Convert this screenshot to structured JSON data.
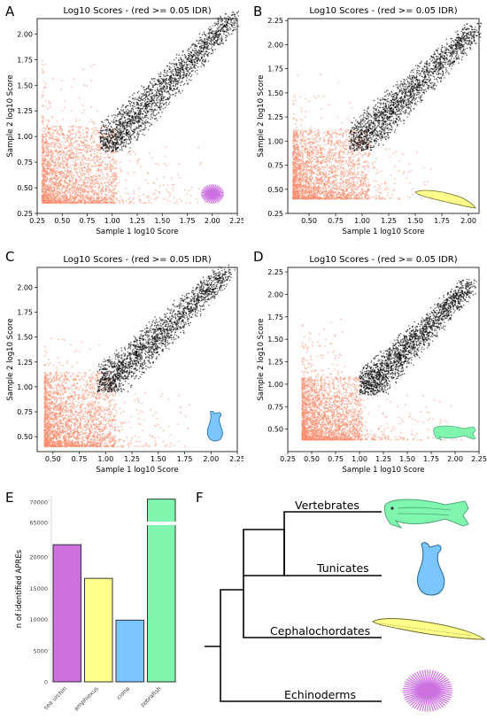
{
  "panel_labels": [
    "A",
    "B",
    "C",
    "D",
    "E",
    "F"
  ],
  "colors": {
    "pass": "#000000",
    "fail": "#fa8a6c",
    "sea_urchin": "#cc70e0",
    "amphioxus": "#ffff8a",
    "ciona": "#7cc6ff",
    "zebrafish": "#7ff5ae"
  },
  "chart_data": [
    {
      "type": "scatter",
      "panel": "A",
      "organism_icon": "sea-urchin-icon",
      "title": "Log10 Scores - (red >= 0.05 IDR)",
      "xlabel": "Sample 1 log10 Score",
      "ylabel": "Sample 2 log10 Score",
      "xlim": [
        0.25,
        2.25
      ],
      "ylim": [
        0.25,
        2.15
      ],
      "xticks": [
        "0.25",
        "0.50",
        "0.75",
        "1.00",
        "1.25",
        "1.50",
        "1.75",
        "2.00",
        "2.25"
      ],
      "yticks": [
        "0.25",
        "0.50",
        "0.75",
        "1.00",
        "1.25",
        "1.50",
        "1.75",
        "2.00"
      ],
      "xtick_values": [
        0.25,
        0.5,
        0.75,
        1.0,
        1.25,
        1.5,
        1.75,
        2.0,
        2.25
      ],
      "ytick_values": [
        0.25,
        0.5,
        0.75,
        1.0,
        1.25,
        1.5,
        1.75,
        2.0
      ],
      "series": [
        {
          "name": "red >= 0.05 IDR",
          "region": {
            "x": [
              0.3,
              2.05
            ],
            "y": [
              0.35,
              1.85
            ],
            "threshold": 0.9
          }
        },
        {
          "name": "",
          "region": {
            "x": [
              0.88,
              2.2
            ],
            "y": [
              0.85,
              2.15
            ],
            "threshold": 0.9
          }
        }
      ]
    },
    {
      "type": "scatter",
      "panel": "B",
      "organism_icon": "amphioxus-icon",
      "title": "Log10 Scores - (red >= 0.05 IDR)",
      "xlabel": "Sample 1 log10 Score",
      "ylabel": "Sample 2 log10 Score",
      "xlim": [
        0.3,
        2.1
      ],
      "ylim": [
        0.25,
        2.27
      ],
      "xticks": [
        "0.50",
        "0.75",
        "1.00",
        "1.25",
        "1.50",
        "1.75",
        "2.00"
      ],
      "yticks": [
        "0.25",
        "0.50",
        "0.75",
        "1.00",
        "1.25",
        "1.50",
        "1.75",
        "2.00",
        "2.25"
      ],
      "xtick_values": [
        0.5,
        0.75,
        1.0,
        1.25,
        1.5,
        1.75,
        2.0
      ],
      "ytick_values": [
        0.25,
        0.5,
        0.75,
        1.0,
        1.25,
        1.5,
        1.75,
        2.0,
        2.25
      ],
      "series": [
        {
          "name": "red >= 0.05 IDR",
          "region": {
            "x": [
              0.35,
              1.75
            ],
            "y": [
              0.4,
              1.7
            ],
            "threshold": 0.92
          }
        },
        {
          "name": "",
          "region": {
            "x": [
              0.88,
              2.05
            ],
            "y": [
              0.9,
              2.15
            ],
            "threshold": 0.92
          }
        }
      ]
    },
    {
      "type": "scatter",
      "panel": "C",
      "organism_icon": "ciona-icon",
      "title": "Log10 Scores - (red >= 0.05 IDR)",
      "xlabel": "Sample 1 log10 Score",
      "ylabel": "Sample 2 log10 Score",
      "xlim": [
        0.35,
        2.25
      ],
      "ylim": [
        0.35,
        2.2
      ],
      "xticks": [
        "0.50",
        "0.75",
        "1.00",
        "1.25",
        "1.50",
        "1.75",
        "2.00",
        "2.25"
      ],
      "yticks": [
        "0.50",
        "0.75",
        "1.00",
        "1.25",
        "1.50",
        "1.75",
        "2.00"
      ],
      "xtick_values": [
        0.5,
        0.75,
        1.0,
        1.25,
        1.5,
        1.75,
        2.0,
        2.25
      ],
      "ytick_values": [
        0.5,
        0.75,
        1.0,
        1.25,
        1.5,
        1.75,
        2.0
      ],
      "series": [
        {
          "name": "red >= 0.05 IDR",
          "region": {
            "x": [
              0.42,
              1.85
            ],
            "y": [
              0.4,
              1.55
            ],
            "threshold": 0.95
          }
        },
        {
          "name": "",
          "region": {
            "x": [
              0.92,
              2.15
            ],
            "y": [
              0.95,
              2.15
            ],
            "threshold": 0.95
          }
        }
      ]
    },
    {
      "type": "scatter",
      "panel": "D",
      "organism_icon": "zebrafish-icon",
      "title": "Log10 Scores - (red >= 0.05 IDR)",
      "xlabel": "Sample 1 log10 Score",
      "ylabel": "Sample 2 log10 Score",
      "xlim": [
        0.25,
        2.25
      ],
      "ylim": [
        0.25,
        2.3
      ],
      "xticks": [
        "0.25",
        "0.50",
        "0.75",
        "1.00",
        "1.25",
        "1.50",
        "1.75",
        "2.00",
        "2.25"
      ],
      "yticks": [
        "0.50",
        "0.75",
        "1.00",
        "1.25",
        "1.50",
        "1.75",
        "2.00",
        "2.25"
      ],
      "xtick_values": [
        0.25,
        0.5,
        0.75,
        1.0,
        1.25,
        1.5,
        1.75,
        2.0,
        2.25
      ],
      "ytick_values": [
        0.5,
        0.75,
        1.0,
        1.25,
        1.5,
        1.75,
        2.0,
        2.25
      ],
      "series": [
        {
          "name": "red >= 0.05 IDR",
          "region": {
            "x": [
              0.4,
              2.2
            ],
            "y": [
              0.38,
              1.9
            ],
            "threshold": 0.88
          }
        },
        {
          "name": "",
          "region": {
            "x": [
              1.0,
              2.15
            ],
            "y": [
              0.88,
              2.1
            ],
            "threshold": 0.88
          }
        }
      ]
    },
    {
      "type": "bar",
      "panel": "E",
      "ylabel": "n of identified APREs",
      "categories": [
        "sea urchin",
        "amphioxus",
        "ciona",
        "zebrafish"
      ],
      "values": [
        22000,
        16600,
        9900,
        70700
      ],
      "ylim": [
        0,
        71500
      ],
      "axis_break": [
        25000,
        65000
      ],
      "yticks": [
        "0",
        "5000",
        "10000",
        "15000",
        "20000",
        "65000",
        "70000"
      ],
      "ytick_values": [
        0,
        5000,
        10000,
        15000,
        20000,
        65000,
        70000
      ]
    }
  ],
  "tree": {
    "labels": [
      "Vertebrates",
      "Tunicates",
      "Cephalochordates",
      "Echinoderms"
    ]
  }
}
